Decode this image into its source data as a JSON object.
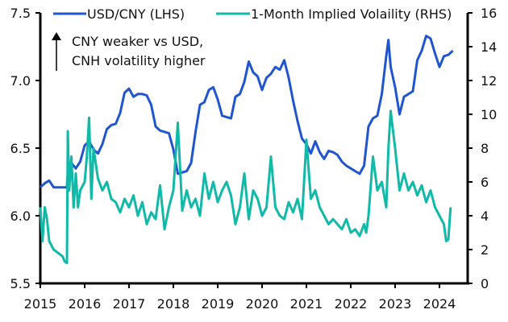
{
  "chart_data": {
    "type": "line",
    "title": "",
    "xlabel": "",
    "x_ticks": [
      "2015",
      "2016",
      "2017",
      "2018",
      "2019",
      "2020",
      "2021",
      "2022",
      "2023",
      "2024"
    ],
    "xlim": [
      2015.0,
      2024.6
    ],
    "left_axis": {
      "label": "",
      "ylim": [
        5.5,
        7.5
      ],
      "ticks": [
        "5.5",
        "6.0",
        "6.5",
        "7.0",
        "7.5"
      ]
    },
    "right_axis": {
      "label": "",
      "ylim": [
        0,
        16
      ],
      "ticks": [
        "0",
        "2",
        "4",
        "6",
        "8",
        "10",
        "12",
        "14",
        "16"
      ]
    },
    "legend": {
      "placement": "top"
    },
    "annotation": {
      "lines": [
        "CNY weaker vs USD,",
        "CNH volatility higher"
      ],
      "arrow": "up"
    },
    "series": [
      {
        "name": "USD/CNY (LHS)",
        "axis": "left",
        "color": "#1f55d0",
        "x": [
          2015.0,
          2015.1,
          2015.2,
          2015.3,
          2015.4,
          2015.5,
          2015.6,
          2015.62,
          2015.7,
          2015.8,
          2015.9,
          2016.0,
          2016.1,
          2016.2,
          2016.3,
          2016.4,
          2016.5,
          2016.6,
          2016.7,
          2016.8,
          2016.9,
          2017.0,
          2017.1,
          2017.2,
          2017.3,
          2017.4,
          2017.5,
          2017.6,
          2017.7,
          2017.8,
          2017.9,
          2018.0,
          2018.1,
          2018.2,
          2018.3,
          2018.4,
          2018.5,
          2018.6,
          2018.7,
          2018.8,
          2018.9,
          2019.0,
          2019.1,
          2019.2,
          2019.3,
          2019.4,
          2019.5,
          2019.6,
          2019.7,
          2019.8,
          2019.9,
          2020.0,
          2020.1,
          2020.2,
          2020.3,
          2020.4,
          2020.5,
          2020.6,
          2020.7,
          2020.8,
          2020.9,
          2021.0,
          2021.1,
          2021.2,
          2021.3,
          2021.4,
          2021.5,
          2021.6,
          2021.7,
          2021.8,
          2021.9,
          2022.0,
          2022.1,
          2022.2,
          2022.3,
          2022.4,
          2022.5,
          2022.6,
          2022.7,
          2022.8,
          2022.85,
          2022.9,
          2023.0,
          2023.1,
          2023.2,
          2023.3,
          2023.4,
          2023.5,
          2023.6,
          2023.7,
          2023.8,
          2023.9,
          2024.0,
          2024.1,
          2024.2,
          2024.3
        ],
        "values": [
          6.21,
          6.24,
          6.26,
          6.21,
          6.21,
          6.21,
          6.21,
          6.32,
          6.39,
          6.35,
          6.4,
          6.52,
          6.55,
          6.49,
          6.46,
          6.53,
          6.64,
          6.67,
          6.68,
          6.76,
          6.91,
          6.94,
          6.88,
          6.9,
          6.9,
          6.89,
          6.82,
          6.66,
          6.63,
          6.62,
          6.61,
          6.49,
          6.31,
          6.32,
          6.33,
          6.39,
          6.62,
          6.82,
          6.84,
          6.93,
          6.95,
          6.86,
          6.74,
          6.73,
          6.72,
          6.88,
          6.9,
          6.99,
          7.14,
          7.06,
          7.03,
          6.93,
          7.02,
          7.05,
          7.1,
          7.08,
          7.15,
          7.02,
          6.85,
          6.7,
          6.57,
          6.53,
          6.46,
          6.55,
          6.47,
          6.42,
          6.48,
          6.47,
          6.45,
          6.4,
          6.37,
          6.35,
          6.33,
          6.31,
          6.37,
          6.66,
          6.72,
          6.74,
          6.9,
          7.18,
          7.3,
          7.1,
          6.95,
          6.75,
          6.88,
          6.9,
          6.92,
          7.15,
          7.22,
          7.33,
          7.31,
          7.2,
          7.1,
          7.18,
          7.19,
          7.22
        ]
      },
      {
        "name": "1-Month Implied Volaility (RHS)",
        "axis": "right",
        "color": "#10b9a8",
        "x": [
          2015.0,
          2015.05,
          2015.1,
          2015.15,
          2015.2,
          2015.3,
          2015.4,
          2015.5,
          2015.55,
          2015.6,
          2015.62,
          2015.65,
          2015.7,
          2015.75,
          2015.8,
          2015.85,
          2015.9,
          2016.0,
          2016.05,
          2016.1,
          2016.15,
          2016.2,
          2016.3,
          2016.4,
          2016.5,
          2016.6,
          2016.7,
          2016.8,
          2016.9,
          2017.0,
          2017.1,
          2017.2,
          2017.3,
          2017.4,
          2017.5,
          2017.6,
          2017.7,
          2017.8,
          2017.9,
          2018.0,
          2018.1,
          2018.2,
          2018.3,
          2018.4,
          2018.5,
          2018.6,
          2018.7,
          2018.8,
          2018.9,
          2019.0,
          2019.1,
          2019.2,
          2019.3,
          2019.4,
          2019.5,
          2019.6,
          2019.7,
          2019.8,
          2019.9,
          2020.0,
          2020.1,
          2020.2,
          2020.3,
          2020.4,
          2020.5,
          2020.6,
          2020.7,
          2020.8,
          2020.9,
          2021.0,
          2021.1,
          2021.2,
          2021.3,
          2021.4,
          2021.5,
          2021.6,
          2021.7,
          2021.8,
          2021.9,
          2022.0,
          2022.1,
          2022.2,
          2022.3,
          2022.35,
          2022.4,
          2022.5,
          2022.6,
          2022.7,
          2022.8,
          2022.85,
          2022.9,
          2023.0,
          2023.1,
          2023.2,
          2023.3,
          2023.4,
          2023.5,
          2023.6,
          2023.7,
          2023.8,
          2023.9,
          2024.0,
          2024.1,
          2024.15,
          2024.2,
          2024.25
        ],
        "values": [
          4.5,
          2.5,
          4.5,
          3.8,
          2.5,
          2.0,
          1.8,
          1.6,
          1.3,
          1.2,
          9.0,
          5.5,
          7.5,
          4.5,
          6.5,
          4.5,
          5.5,
          6.0,
          7.5,
          9.8,
          5.0,
          8.0,
          6.2,
          5.5,
          6.0,
          5.0,
          4.8,
          4.2,
          5.0,
          4.5,
          5.2,
          4.0,
          4.8,
          3.5,
          4.2,
          3.8,
          5.8,
          3.2,
          4.5,
          5.5,
          9.5,
          4.3,
          5.5,
          4.5,
          5.0,
          4.0,
          6.5,
          5.0,
          6.0,
          4.8,
          5.5,
          6.0,
          5.2,
          3.5,
          4.5,
          6.5,
          3.8,
          5.5,
          5.0,
          4.0,
          4.5,
          7.5,
          4.5,
          4.0,
          3.8,
          4.8,
          4.2,
          5.0,
          3.8,
          8.5,
          5.0,
          5.5,
          4.5,
          4.0,
          3.5,
          3.8,
          3.5,
          3.2,
          3.8,
          3.0,
          3.2,
          2.8,
          3.5,
          3.0,
          4.0,
          7.5,
          5.5,
          6.0,
          4.5,
          8.0,
          10.2,
          8.0,
          5.5,
          6.5,
          5.5,
          6.0,
          5.2,
          5.8,
          4.8,
          5.5,
          4.5,
          4.0,
          3.5,
          2.5,
          2.6,
          4.5
        ]
      }
    ]
  }
}
